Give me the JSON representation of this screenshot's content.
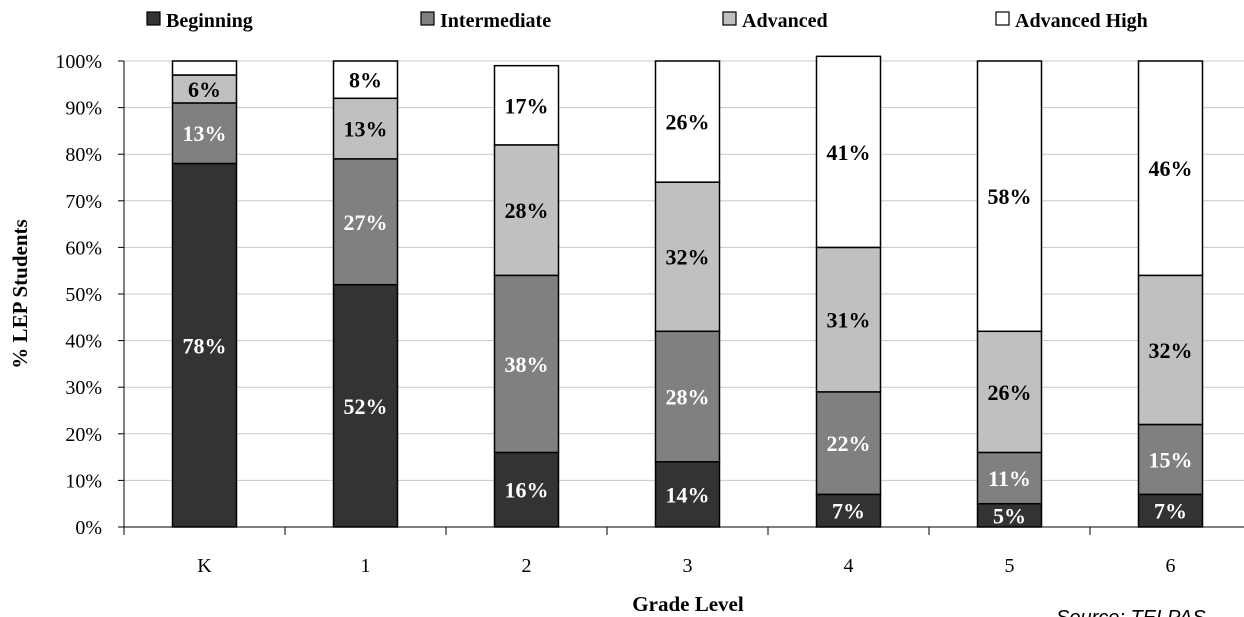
{
  "chart_data": {
    "type": "bar",
    "stacked": true,
    "categories": [
      "K",
      "1",
      "2",
      "3",
      "4",
      "5",
      "6"
    ],
    "series": [
      {
        "name": "Beginning",
        "values": [
          78,
          52,
          16,
          14,
          7,
          5,
          7
        ],
        "labels": [
          "78%",
          "52%",
          "16%",
          "14%",
          "7%",
          "5%",
          "7%"
        ]
      },
      {
        "name": "Intermediate",
        "values": [
          13,
          27,
          38,
          28,
          22,
          11,
          15
        ],
        "labels": [
          "13%",
          "27%",
          "38%",
          "28%",
          "22%",
          "11%",
          "15%"
        ]
      },
      {
        "name": "Advanced",
        "values": [
          6,
          13,
          28,
          32,
          31,
          26,
          32
        ],
        "labels": [
          "6%",
          "13%",
          "28%",
          "32%",
          "31%",
          "26%",
          "32%"
        ]
      },
      {
        "name": "Advanced High",
        "values": [
          3,
          8,
          17,
          26,
          41,
          58,
          46
        ],
        "labels": [
          "",
          "8%",
          "17%",
          "26%",
          "41%",
          "58%",
          "46%"
        ]
      }
    ],
    "colors": [
      "#333333",
      "#808080",
      "#c0c0c0",
      "#ffffff"
    ],
    "label_colors": [
      "#ffffff",
      "#ffffff",
      "#000000",
      "#000000"
    ],
    "xlabel": "Grade Level",
    "ylabel": "% LEP Students",
    "ylim": [
      0,
      100
    ],
    "yticks": [
      "0%",
      "10%",
      "20%",
      "30%",
      "40%",
      "50%",
      "60%",
      "70%",
      "80%",
      "90%",
      "100%"
    ],
    "grid": true,
    "legend_position": "top",
    "source_note": "Source: TELPAS"
  }
}
